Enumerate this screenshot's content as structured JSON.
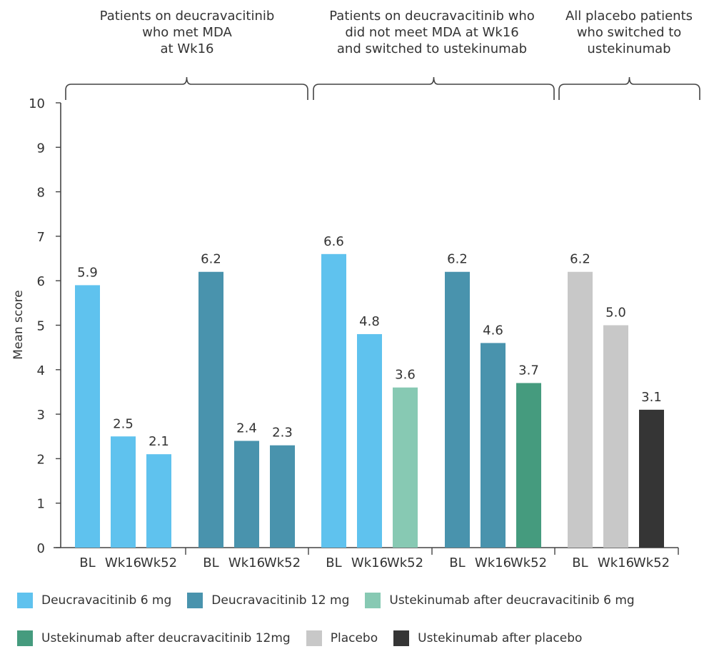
{
  "chart_data": {
    "type": "bar",
    "title": "",
    "xlabel": "",
    "ylabel": "Mean score",
    "ylim": [
      0,
      10
    ],
    "yticks": [
      0,
      1,
      2,
      3,
      4,
      5,
      6,
      7,
      8,
      9,
      10
    ],
    "grid": false,
    "legend_position": "bottom",
    "groups": [
      {
        "title": "Patients on deucravacitinib\nwho met MDA\nat Wk16",
        "subgroups": [
          {
            "series": "Deucravacitinib 6 mg",
            "categories": [
              "BL",
              "Wk16",
              "Wk52"
            ],
            "values": [
              5.9,
              2.5,
              2.1
            ],
            "series_per_bar": [
              "Deucravacitinib 6 mg",
              "Deucravacitinib 6 mg",
              "Deucravacitinib 6 mg"
            ],
            "labels": [
              "5.9",
              "2.5",
              "2.1"
            ]
          },
          {
            "series": "Deucravacitinib 12 mg",
            "categories": [
              "BL",
              "Wk16",
              "Wk52"
            ],
            "values": [
              6.2,
              2.4,
              2.3
            ],
            "series_per_bar": [
              "Deucravacitinib 12 mg",
              "Deucravacitinib 12 mg",
              "Deucravacitinib 12 mg"
            ],
            "labels": [
              "6.2",
              "2.4",
              "2.3"
            ]
          }
        ]
      },
      {
        "title": "Patients on deucravacitinib who\ndid not meet MDA at Wk16\nand switched to ustekinumab",
        "subgroups": [
          {
            "series": "Deucravacitinib 6 mg",
            "categories": [
              "BL",
              "Wk16",
              "Wk52"
            ],
            "values": [
              6.6,
              4.8,
              3.6
            ],
            "series_per_bar": [
              "Deucravacitinib 6 mg",
              "Deucravacitinib 6 mg",
              "Ustekinumab after deucravacitinib 6 mg"
            ],
            "labels": [
              "6.6",
              "4.8",
              "3.6"
            ]
          },
          {
            "series": "Deucravacitinib 12 mg",
            "categories": [
              "BL",
              "Wk16",
              "Wk52"
            ],
            "values": [
              6.2,
              4.6,
              3.7
            ],
            "series_per_bar": [
              "Deucravacitinib 12 mg",
              "Deucravacitinib 12 mg",
              "Ustekinumab after deucravacitinib 12mg"
            ],
            "labels": [
              "6.2",
              "4.6",
              "3.7"
            ]
          }
        ]
      },
      {
        "title": "All placebo patients\nwho switched to\nustekinumab",
        "subgroups": [
          {
            "series": "Placebo",
            "categories": [
              "BL",
              "Wk16",
              "Wk52"
            ],
            "values": [
              6.2,
              5.0,
              3.1
            ],
            "series_per_bar": [
              "Placebo",
              "Placebo",
              "Ustekinumab after placebo"
            ],
            "labels": [
              "6.2",
              "5.0",
              "3.1"
            ]
          }
        ]
      }
    ],
    "legend": [
      {
        "name": "Deucravacitinib 6 mg",
        "color": "#5fc2ee"
      },
      {
        "name": "Deucravacitinib 12 mg",
        "color": "#4993ad"
      },
      {
        "name": "Ustekinumab after deucravacitinib 6 mg",
        "color": "#87c9b3"
      },
      {
        "name": "Ustekinumab after deucravacitinib 12mg",
        "color": "#459b7e"
      },
      {
        "name": "Placebo",
        "color": "#c8c8c8"
      },
      {
        "name": "Ustekinumab after placebo",
        "color": "#353535"
      }
    ]
  }
}
